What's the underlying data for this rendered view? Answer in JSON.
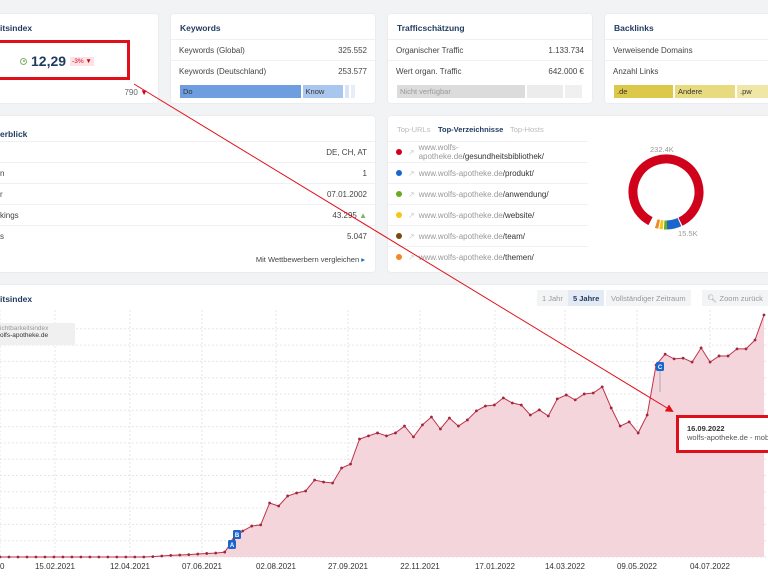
{
  "visibility_card": {
    "title": "itsindex",
    "score": "12,29",
    "change": "-3%",
    "footer_value": "790"
  },
  "keywords_card": {
    "title": "Keywords",
    "rows": [
      {
        "label": "Keywords (Global)",
        "value": "325.552"
      },
      {
        "label": "Keywords (Deutschland)",
        "value": "253.577"
      }
    ],
    "bar": [
      "Do",
      "Know"
    ]
  },
  "traffic_card": {
    "title": "Trafficschätzung",
    "rows": [
      {
        "label": "Organischer Traffic",
        "value": "1.133.734"
      },
      {
        "label": "Wert organ. Traffic",
        "value": "642.000 €"
      }
    ],
    "bar": [
      "Nicht verfügbar"
    ]
  },
  "backlinks_card": {
    "title": "Backlinks",
    "rows": [
      {
        "label": "Verweisende Domains",
        "value": ""
      },
      {
        "label": "Anzahl Links",
        "value": ""
      }
    ],
    "bar": [
      ".de",
      "Andere",
      ".pw"
    ]
  },
  "overview_card": {
    "title": "erblick",
    "rows": [
      {
        "label": "",
        "value": "DE, CH, AT"
      },
      {
        "label": "n",
        "value": "1"
      },
      {
        "label": "r",
        "value": "07.01.2002"
      },
      {
        "label": "kings",
        "value": "43.295"
      },
      {
        "label": "s",
        "value": "5.047"
      }
    ],
    "compare_link": "Mit Wettbewerbern vergleichen"
  },
  "directories_card": {
    "tabs": [
      "Top-URLs",
      "Top-Verzeichnisse",
      "Top-Hosts"
    ],
    "active_tab": 1,
    "items": [
      {
        "host": "www.wolfs-apotheke.de",
        "path": "/gesundheitsbibliothek/",
        "color": "#d0021b"
      },
      {
        "host": "www.wolfs-apotheke.de",
        "path": "/produkt/",
        "color": "#1a66cc"
      },
      {
        "host": "www.wolfs-apotheke.de",
        "path": "/anwendung/",
        "color": "#6aaa1e"
      },
      {
        "host": "www.wolfs-apotheke.de",
        "path": "/website/",
        "color": "#f5c518"
      },
      {
        "host": "www.wolfs-apotheke.de",
        "path": "/team/",
        "color": "#7a4a10"
      },
      {
        "host": "www.wolfs-apotheke.de",
        "path": "/themen/",
        "color": "#f08a24"
      }
    ],
    "donut_labels": [
      "232.4K",
      "15.5K"
    ]
  },
  "chart_card": {
    "title": "itsindex",
    "ranges": [
      "1 Jahr",
      "5 Jahre",
      "Vollständiger Zeitraum"
    ],
    "active_range": 1,
    "zoom_back": "Zoom zurück",
    "legend": {
      "line1": "ichtbarkeitsindex",
      "line2": "olfs-apotheke.de"
    },
    "tooltip": {
      "date": "16.09.2022",
      "text": "wolfs-apotheke.de - mob"
    },
    "markers": [
      "A",
      "B",
      "C"
    ]
  },
  "chart_data": {
    "type": "area",
    "color": "#c0334a",
    "xticks": [
      "0",
      "15.02.2021",
      "12.04.2021",
      "07.06.2021",
      "02.08.2021",
      "27.09.2021",
      "22.11.2021",
      "17.01.2022",
      "14.03.2022",
      "09.05.2022",
      "04.07.2022"
    ],
    "values": [
      0,
      0,
      0,
      0,
      0,
      0,
      0,
      0,
      0,
      0,
      0,
      0,
      0,
      0,
      0,
      0,
      0,
      0.02,
      0.05,
      0.08,
      0.1,
      0.12,
      0.15,
      0.18,
      0.2,
      0.25,
      0.91,
      1.32,
      1.57,
      1.63,
      2.74,
      2.59,
      3.1,
      3.25,
      3.35,
      3.91,
      3.81,
      3.76,
      4.52,
      4.72,
      5.99,
      6.15,
      6.3,
      6.15,
      6.3,
      6.65,
      6.1,
      6.71,
      7.11,
      6.5,
      7.06,
      6.65,
      6.96,
      7.42,
      7.67,
      7.72,
      8.08,
      7.82,
      7.72,
      7.21,
      7.47,
      7.16,
      8.03,
      8.23,
      7.98,
      8.28,
      8.33,
      8.64,
      7.57,
      6.65,
      6.86,
      6.3,
      7.21,
      9.75,
      10.3,
      10.06,
      10.1,
      9.9,
      10.62,
      9.9,
      10.21,
      10.21,
      10.57,
      10.57,
      11.02,
      12.29
    ],
    "grid": true
  }
}
